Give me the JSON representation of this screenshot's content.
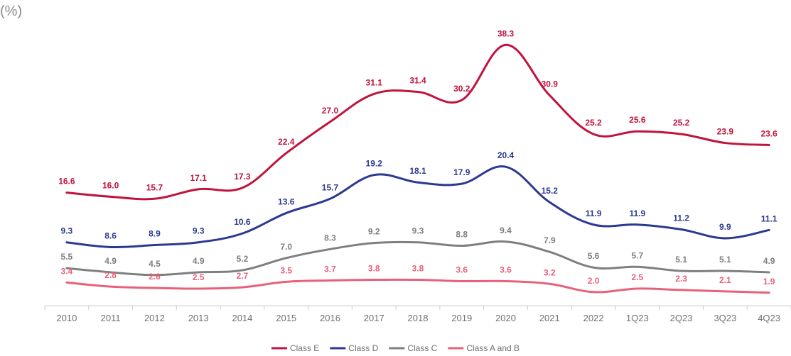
{
  "chart_data": {
    "type": "line",
    "unit_label": "(%)",
    "categories": [
      "2010",
      "2011",
      "2012",
      "2013",
      "2014",
      "2015",
      "2016",
      "2017",
      "2018",
      "2019",
      "2020",
      "2021",
      "2022",
      "1Q23",
      "2Q23",
      "3Q23",
      "4Q23"
    ],
    "series": [
      {
        "name": "Class E",
        "color": "#c0143c",
        "values": [
          16.6,
          16.0,
          15.7,
          17.1,
          17.3,
          22.4,
          27.0,
          31.1,
          31.4,
          30.2,
          38.3,
          30.9,
          25.2,
          25.6,
          25.2,
          23.9,
          23.6
        ]
      },
      {
        "name": "Class D",
        "color": "#2b3990",
        "values": [
          9.3,
          8.6,
          8.9,
          9.3,
          10.6,
          13.6,
          15.7,
          19.2,
          18.1,
          17.9,
          20.4,
          15.2,
          11.9,
          11.9,
          11.2,
          9.9,
          11.1
        ]
      },
      {
        "name": "Class C",
        "color": "#7f7f7f",
        "values": [
          5.5,
          4.9,
          4.5,
          4.9,
          5.2,
          7.0,
          8.3,
          9.2,
          9.3,
          8.8,
          9.4,
          7.9,
          5.6,
          5.7,
          5.1,
          5.1,
          4.9
        ]
      },
      {
        "name": "Class A and B",
        "color": "#e8607a",
        "values": [
          3.4,
          2.8,
          2.6,
          2.5,
          2.7,
          3.5,
          3.7,
          3.8,
          3.8,
          3.6,
          3.6,
          3.2,
          2.0,
          2.5,
          2.3,
          2.1,
          1.9
        ]
      }
    ],
    "ylim": [
      0,
      40
    ],
    "grid": false,
    "legend_position": "bottom-center",
    "axis_color": "#cccccc",
    "tick_color": "#707070"
  }
}
